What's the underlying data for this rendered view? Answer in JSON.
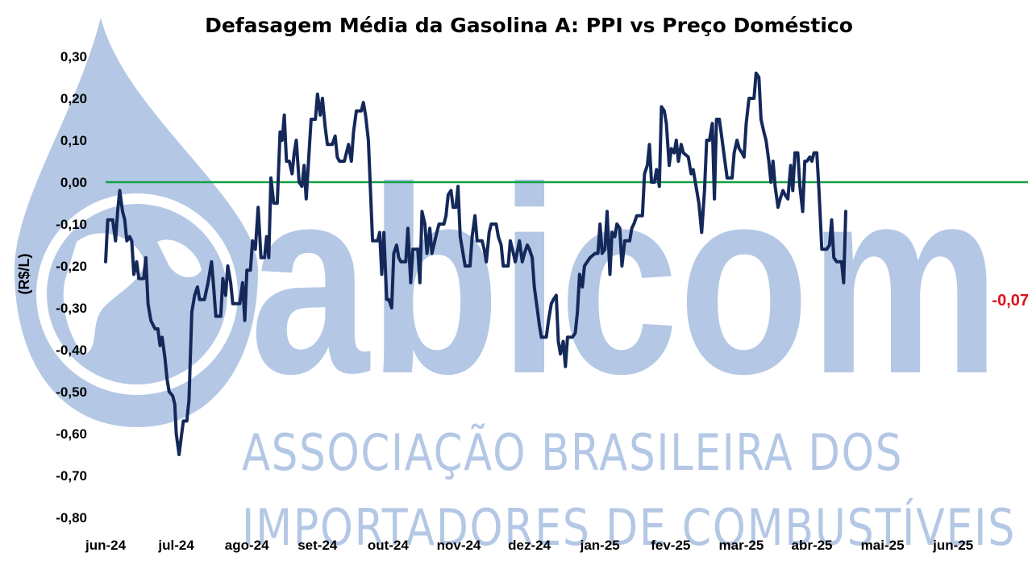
{
  "watermark": {
    "logo_text": "abicom",
    "line1": "ASSOCIAÇÃO BRASILEIRA DOS",
    "line2": "IMPORTADORES DE COMBUSTÍVEIS",
    "color": "#b4c8e6"
  },
  "chart_data": {
    "type": "line",
    "title": "Defasagem Média da Gasolina A: PPI vs Preço Doméstico",
    "ylabel": "(R$/L)",
    "xlabel": "",
    "ylim": [
      -0.8,
      0.3
    ],
    "yticks": [
      0.3,
      0.2,
      0.1,
      0.0,
      -0.1,
      -0.2,
      -0.3,
      -0.4,
      -0.5,
      -0.6,
      -0.7,
      -0.8
    ],
    "ytick_labels": [
      "0,30",
      "0,20",
      "0,10",
      "0,00",
      "-0,10",
      "-0,20",
      "-0,30",
      "-0,40",
      "-0,50",
      "-0,60",
      "-0,70",
      "-0,80"
    ],
    "x_unit": "month index (0 = jun-24)",
    "xlim": [
      0,
      13
    ],
    "x_tick_labels": [
      "jun-24",
      "jul-24",
      "ago-24",
      "set-24",
      "out-24",
      "nov-24",
      "dez-24",
      "jan-25",
      "fev-25",
      "mar-25",
      "abr-25",
      "mai-25",
      "jun-25"
    ],
    "zero_line": {
      "value": 0.0,
      "color": "#12a044"
    },
    "line_color": "#14285a",
    "series": [
      {
        "points": [
          [
            0.0,
            -0.19
          ],
          [
            0.03,
            -0.09
          ],
          [
            0.1,
            -0.09
          ],
          [
            0.14,
            -0.14
          ],
          [
            0.17,
            -0.07
          ],
          [
            0.2,
            -0.02
          ],
          [
            0.24,
            -0.07
          ],
          [
            0.27,
            -0.09
          ],
          [
            0.3,
            -0.14
          ],
          [
            0.34,
            -0.13
          ],
          [
            0.37,
            -0.14
          ],
          [
            0.4,
            -0.22
          ],
          [
            0.44,
            -0.19
          ],
          [
            0.47,
            -0.23
          ],
          [
            0.54,
            -0.23
          ],
          [
            0.57,
            -0.18
          ],
          [
            0.6,
            -0.29
          ],
          [
            0.64,
            -0.33
          ],
          [
            0.7,
            -0.35
          ],
          [
            0.74,
            -0.35
          ],
          [
            0.77,
            -0.39
          ],
          [
            0.8,
            -0.37
          ],
          [
            0.84,
            -0.42
          ],
          [
            0.87,
            -0.47
          ],
          [
            0.9,
            -0.5
          ],
          [
            0.95,
            -0.51
          ],
          [
            0.98,
            -0.53
          ],
          [
            1.0,
            -0.6
          ],
          [
            1.04,
            -0.65
          ],
          [
            1.07,
            -0.61
          ],
          [
            1.1,
            -0.57
          ],
          [
            1.15,
            -0.57
          ],
          [
            1.18,
            -0.52
          ],
          [
            1.22,
            -0.31
          ],
          [
            1.26,
            -0.27
          ],
          [
            1.3,
            -0.25
          ],
          [
            1.33,
            -0.28
          ],
          [
            1.4,
            -0.28
          ],
          [
            1.45,
            -0.24
          ],
          [
            1.5,
            -0.19
          ],
          [
            1.53,
            -0.25
          ],
          [
            1.56,
            -0.32
          ],
          [
            1.63,
            -0.32
          ],
          [
            1.66,
            -0.23
          ],
          [
            1.7,
            -0.27
          ],
          [
            1.73,
            -0.2
          ],
          [
            1.77,
            -0.24
          ],
          [
            1.8,
            -0.29
          ],
          [
            1.9,
            -0.29
          ],
          [
            1.94,
            -0.24
          ],
          [
            1.97,
            -0.33
          ],
          [
            2.0,
            -0.21
          ],
          [
            2.05,
            -0.21
          ],
          [
            2.08,
            -0.14
          ],
          [
            2.12,
            -0.16
          ],
          [
            2.16,
            -0.06
          ],
          [
            2.2,
            -0.18
          ],
          [
            2.25,
            -0.18
          ],
          [
            2.28,
            -0.13
          ],
          [
            2.31,
            -0.18
          ],
          [
            2.34,
            0.01
          ],
          [
            2.38,
            -0.05
          ],
          [
            2.43,
            -0.05
          ],
          [
            2.47,
            0.12
          ],
          [
            2.5,
            0.1
          ],
          [
            2.53,
            0.16
          ],
          [
            2.56,
            0.05
          ],
          [
            2.6,
            0.05
          ],
          [
            2.64,
            0.02
          ],
          [
            2.67,
            0.07
          ],
          [
            2.7,
            0.1
          ],
          [
            2.74,
            0.0
          ],
          [
            2.78,
            -0.01
          ],
          [
            2.81,
            0.04
          ],
          [
            2.84,
            -0.04
          ],
          [
            2.88,
            0.07
          ],
          [
            2.91,
            0.15
          ],
          [
            2.97,
            0.15
          ],
          [
            3.0,
            0.21
          ],
          [
            3.04,
            0.16
          ],
          [
            3.07,
            0.2
          ],
          [
            3.11,
            0.13
          ],
          [
            3.14,
            0.09
          ],
          [
            3.21,
            0.09
          ],
          [
            3.25,
            0.11
          ],
          [
            3.28,
            0.06
          ],
          [
            3.31,
            0.05
          ],
          [
            3.38,
            0.05
          ],
          [
            3.41,
            0.07
          ],
          [
            3.44,
            0.09
          ],
          [
            3.48,
            0.05
          ],
          [
            3.51,
            0.12
          ],
          [
            3.55,
            0.17
          ],
          [
            3.62,
            0.17
          ],
          [
            3.65,
            0.19
          ],
          [
            3.68,
            0.16
          ],
          [
            3.72,
            0.1
          ],
          [
            3.75,
            -0.02
          ],
          [
            3.78,
            -0.14
          ],
          [
            3.85,
            -0.14
          ],
          [
            3.88,
            -0.12
          ],
          [
            3.91,
            -0.22
          ],
          [
            3.94,
            -0.12
          ],
          [
            3.98,
            -0.28
          ],
          [
            4.01,
            -0.28
          ],
          [
            4.05,
            -0.3
          ],
          [
            4.08,
            -0.17
          ],
          [
            4.12,
            -0.15
          ],
          [
            4.15,
            -0.18
          ],
          [
            4.18,
            -0.19
          ],
          [
            4.25,
            -0.19
          ],
          [
            4.28,
            -0.11
          ],
          [
            4.32,
            -0.24
          ],
          [
            4.35,
            -0.16
          ],
          [
            4.42,
            -0.16
          ],
          [
            4.45,
            -0.24
          ],
          [
            4.48,
            -0.07
          ],
          [
            4.52,
            -0.1
          ],
          [
            4.55,
            -0.17
          ],
          [
            4.59,
            -0.11
          ],
          [
            4.62,
            -0.17
          ],
          [
            4.69,
            -0.12
          ],
          [
            4.72,
            -0.1
          ],
          [
            4.79,
            -0.1
          ],
          [
            4.82,
            -0.08
          ],
          [
            4.85,
            -0.03
          ],
          [
            4.89,
            -0.02
          ],
          [
            4.92,
            -0.06
          ],
          [
            4.96,
            -0.06
          ],
          [
            4.99,
            -0.01
          ],
          [
            5.02,
            -0.13
          ],
          [
            5.06,
            -0.17
          ],
          [
            5.09,
            -0.2
          ],
          [
            5.16,
            -0.2
          ],
          [
            5.19,
            -0.13
          ],
          [
            5.23,
            -0.08
          ],
          [
            5.26,
            -0.14
          ],
          [
            5.33,
            -0.14
          ],
          [
            5.36,
            -0.16
          ],
          [
            5.39,
            -0.19
          ],
          [
            5.43,
            -0.12
          ],
          [
            5.46,
            -0.1
          ],
          [
            5.53,
            -0.1
          ],
          [
            5.56,
            -0.13
          ],
          [
            5.6,
            -0.15
          ],
          [
            5.63,
            -0.2
          ],
          [
            5.7,
            -0.2
          ],
          [
            5.73,
            -0.14
          ],
          [
            5.76,
            -0.16
          ],
          [
            5.8,
            -0.19
          ],
          [
            5.86,
            -0.14
          ],
          [
            5.9,
            -0.19
          ],
          [
            5.93,
            -0.17
          ],
          [
            5.97,
            -0.15
          ],
          [
            6.0,
            -0.16
          ],
          [
            6.04,
            -0.18
          ],
          [
            6.07,
            -0.25
          ],
          [
            6.11,
            -0.3
          ],
          [
            6.14,
            -0.34
          ],
          [
            6.17,
            -0.37
          ],
          [
            6.24,
            -0.37
          ],
          [
            6.27,
            -0.33
          ],
          [
            6.31,
            -0.29
          ],
          [
            6.34,
            -0.28
          ],
          [
            6.38,
            -0.27
          ],
          [
            6.41,
            -0.38
          ],
          [
            6.44,
            -0.41
          ],
          [
            6.48,
            -0.38
          ],
          [
            6.51,
            -0.44
          ],
          [
            6.54,
            -0.37
          ],
          [
            6.61,
            -0.37
          ],
          [
            6.65,
            -0.36
          ],
          [
            6.68,
            -0.31
          ],
          [
            6.71,
            -0.22
          ],
          [
            6.75,
            -0.25
          ],
          [
            6.78,
            -0.2
          ],
          [
            6.82,
            -0.19
          ],
          [
            6.86,
            -0.18
          ],
          [
            6.93,
            -0.17
          ],
          [
            6.97,
            -0.17
          ],
          [
            7.0,
            -0.1
          ],
          [
            7.03,
            -0.17
          ],
          [
            7.07,
            -0.16
          ],
          [
            7.1,
            -0.07
          ],
          [
            7.14,
            -0.22
          ],
          [
            7.17,
            -0.12
          ],
          [
            7.21,
            -0.13
          ],
          [
            7.24,
            -0.1
          ],
          [
            7.28,
            -0.11
          ],
          [
            7.31,
            -0.2
          ],
          [
            7.35,
            -0.14
          ],
          [
            7.42,
            -0.14
          ],
          [
            7.45,
            -0.11
          ],
          [
            7.48,
            -0.1
          ],
          [
            7.52,
            -0.08
          ],
          [
            7.6,
            -0.08
          ],
          [
            7.63,
            0.02
          ],
          [
            7.67,
            0.04
          ],
          [
            7.7,
            0.09
          ],
          [
            7.73,
            0.0
          ],
          [
            7.77,
            0.0
          ],
          [
            7.8,
            0.03
          ],
          [
            7.84,
            -0.01
          ],
          [
            7.87,
            0.18
          ],
          [
            7.91,
            0.17
          ],
          [
            7.94,
            0.14
          ],
          [
            7.98,
            0.04
          ],
          [
            8.01,
            0.08
          ],
          [
            8.05,
            0.07
          ],
          [
            8.08,
            0.1
          ],
          [
            8.11,
            0.05
          ],
          [
            8.15,
            0.09
          ],
          [
            8.18,
            0.07
          ],
          [
            8.25,
            0.06
          ],
          [
            8.29,
            0.02
          ],
          [
            8.32,
            0.03
          ],
          [
            8.36,
            -0.01
          ],
          [
            8.4,
            -0.05
          ],
          [
            8.44,
            -0.12
          ],
          [
            8.48,
            -0.02
          ],
          [
            8.51,
            0.1
          ],
          [
            8.55,
            0.1
          ],
          [
            8.59,
            0.14
          ],
          [
            8.62,
            -0.04
          ],
          [
            8.65,
            0.15
          ],
          [
            8.69,
            0.15
          ],
          [
            8.73,
            0.1
          ],
          [
            8.76,
            0.06
          ],
          [
            8.8,
            0.01
          ],
          [
            8.87,
            0.01
          ],
          [
            8.9,
            0.07
          ],
          [
            8.94,
            0.1
          ],
          [
            8.97,
            0.08
          ],
          [
            9.01,
            0.07
          ],
          [
            9.04,
            0.06
          ],
          [
            9.07,
            0.14
          ],
          [
            9.11,
            0.2
          ],
          [
            9.18,
            0.2
          ],
          [
            9.21,
            0.26
          ],
          [
            9.25,
            0.25
          ],
          [
            9.28,
            0.15
          ],
          [
            9.32,
            0.12
          ],
          [
            9.35,
            0.1
          ],
          [
            9.39,
            0.05
          ],
          [
            9.42,
            0.0
          ],
          [
            9.45,
            0.05
          ],
          [
            9.48,
            -0.01
          ],
          [
            9.52,
            -0.06
          ],
          [
            9.55,
            -0.04
          ],
          [
            9.59,
            -0.02
          ],
          [
            9.62,
            -0.03
          ],
          [
            9.66,
            -0.04
          ],
          [
            9.7,
            0.04
          ],
          [
            9.73,
            -0.02
          ],
          [
            9.76,
            0.07
          ],
          [
            9.8,
            0.07
          ],
          [
            9.83,
            -0.01
          ],
          [
            9.87,
            -0.07
          ],
          [
            9.9,
            0.05
          ],
          [
            9.93,
            0.05
          ],
          [
            9.97,
            0.06
          ],
          [
            10.0,
            0.05
          ],
          [
            10.03,
            0.07
          ],
          [
            10.07,
            0.07
          ],
          [
            10.1,
            -0.02
          ],
          [
            10.14,
            -0.16
          ],
          [
            10.21,
            -0.16
          ],
          [
            10.25,
            -0.15
          ],
          [
            10.28,
            -0.09
          ],
          [
            10.31,
            -0.18
          ],
          [
            10.35,
            -0.19
          ],
          [
            10.42,
            -0.19
          ],
          [
            10.45,
            -0.24
          ],
          [
            10.48,
            -0.07
          ]
        ]
      }
    ],
    "last_value_label": {
      "text": "-0,07",
      "color": "#e0101a"
    }
  }
}
